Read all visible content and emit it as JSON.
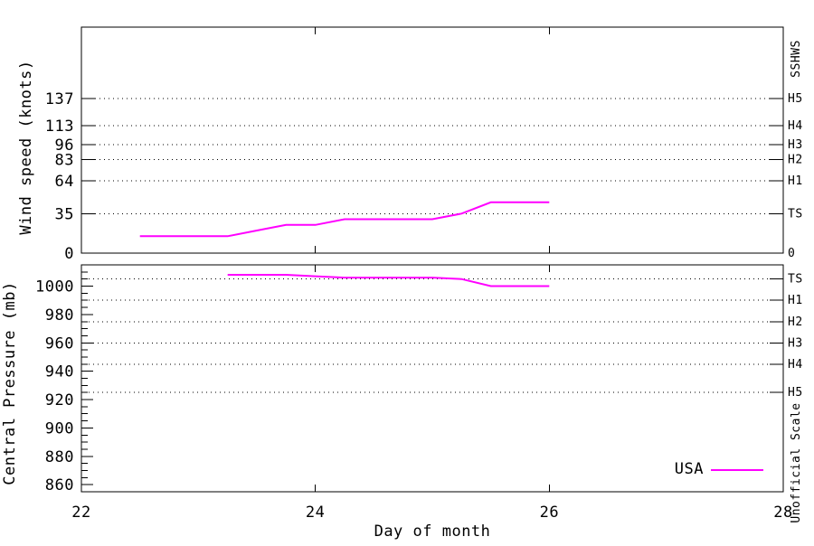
{
  "colors": {
    "series": "#ff00ff",
    "axis": "#000000",
    "background": "#ffffff"
  },
  "chart_data": {
    "type": "line",
    "title": "",
    "xlabel": "Day of month",
    "x_range": [
      22,
      28
    ],
    "x_ticks": [
      22,
      24,
      26,
      28
    ],
    "x_tick_labels": [
      "22",
      "24",
      "26",
      "28"
    ],
    "legend": {
      "position": "bottom-right",
      "entries": [
        {
          "label": "USA",
          "color": "#ff00ff"
        }
      ]
    },
    "panels": [
      {
        "id": "wind",
        "ylabel": "Wind speed (knots)",
        "right_axis_label": "SSHWS",
        "ylim": [
          0,
          200
        ],
        "grid": "dotted horizontal lines at SSHWS category thresholds",
        "y_ticks": [
          {
            "value": 0,
            "label": "0",
            "right_label": "0",
            "gridline": false
          },
          {
            "value": 35,
            "label": "35",
            "right_label": "TS",
            "gridline": true
          },
          {
            "value": 64,
            "label": "64",
            "right_label": "H1",
            "gridline": true
          },
          {
            "value": 83,
            "label": "83",
            "right_label": "H2",
            "gridline": true
          },
          {
            "value": 96,
            "label": "96",
            "right_label": "H3",
            "gridline": true
          },
          {
            "value": 113,
            "label": "113",
            "right_label": "H4",
            "gridline": true
          },
          {
            "value": 137,
            "label": "137",
            "right_label": "H5",
            "gridline": true
          }
        ],
        "series": [
          {
            "name": "USA",
            "color": "#ff00ff",
            "points": [
              [
                22.5,
                15
              ],
              [
                22.75,
                15
              ],
              [
                23.0,
                15
              ],
              [
                23.25,
                15
              ],
              [
                23.5,
                20
              ],
              [
                23.75,
                25
              ],
              [
                24.0,
                25
              ],
              [
                24.25,
                30
              ],
              [
                24.5,
                30
              ],
              [
                24.75,
                30
              ],
              [
                25.0,
                30
              ],
              [
                25.25,
                35
              ],
              [
                25.5,
                45
              ],
              [
                25.75,
                45
              ],
              [
                26.0,
                45
              ]
            ]
          }
        ]
      },
      {
        "id": "pressure",
        "ylabel": "Central Pressure (mb)",
        "right_axis_label": "Unofficial Scale",
        "ylim": [
          855,
          1015
        ],
        "grid": "dotted horizontal lines at unofficial pressure-scale thresholds",
        "y_major_ticks": [
          860,
          880,
          900,
          920,
          940,
          960,
          980,
          1000
        ],
        "y_minor_tick_step": 5,
        "right_ticks": [
          {
            "value": 1005,
            "label": "TS"
          },
          {
            "value": 990,
            "label": "H1"
          },
          {
            "value": 975,
            "label": "H2"
          },
          {
            "value": 960,
            "label": "H3"
          },
          {
            "value": 945,
            "label": "H4"
          },
          {
            "value": 925,
            "label": "H5"
          }
        ],
        "series": [
          {
            "name": "USA",
            "color": "#ff00ff",
            "points": [
              [
                23.25,
                1008
              ],
              [
                23.5,
                1008
              ],
              [
                23.75,
                1008
              ],
              [
                24.0,
                1007
              ],
              [
                24.25,
                1006
              ],
              [
                24.5,
                1006
              ],
              [
                24.75,
                1006
              ],
              [
                25.0,
                1006
              ],
              [
                25.25,
                1005
              ],
              [
                25.5,
                1000
              ],
              [
                25.75,
                1000
              ],
              [
                26.0,
                1000
              ]
            ]
          }
        ]
      }
    ]
  }
}
